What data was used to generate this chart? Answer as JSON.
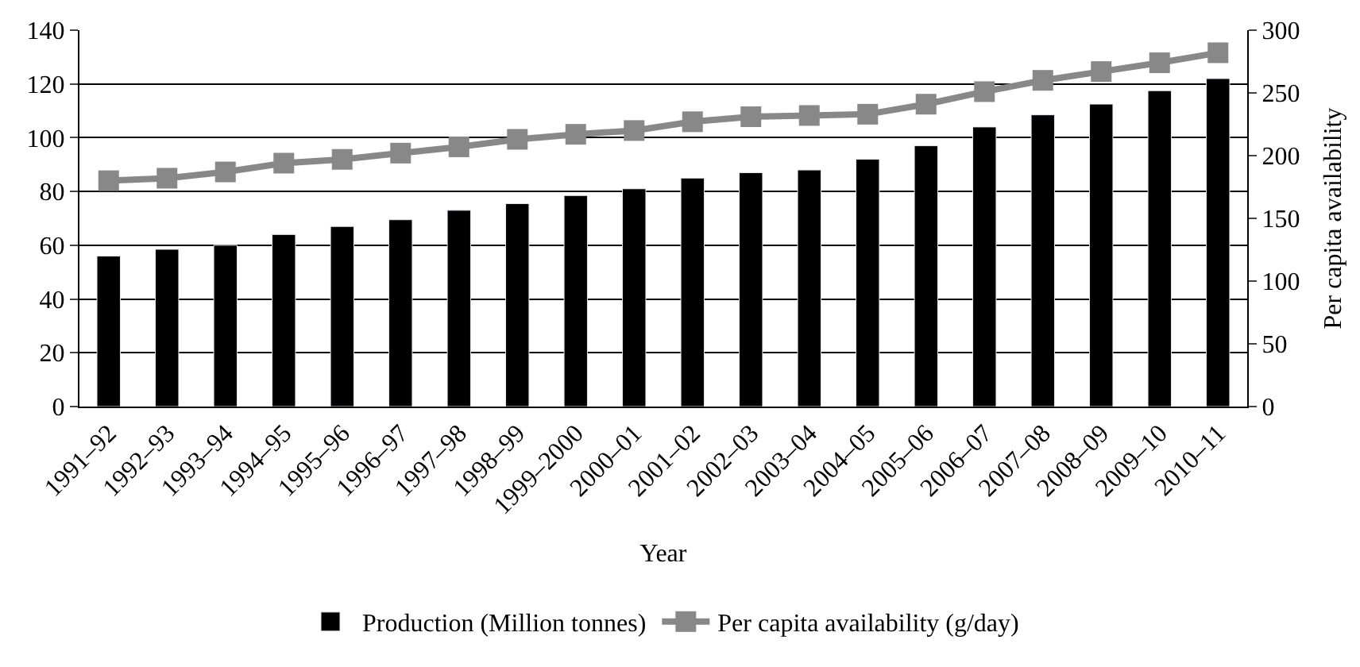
{
  "chart_data": {
    "type": "bar",
    "categories": [
      "1991–92",
      "1992–93",
      "1993–94",
      "1994–95",
      "1995–96",
      "1996–97",
      "1997–98",
      "1998–99",
      "1999–2000",
      "2000–01",
      "2001–02",
      "2002–03",
      "2003–04",
      "2004–05",
      "2005–06",
      "2006–07",
      "2007–08",
      "2008–09",
      "2009–10",
      "2010–11"
    ],
    "series": [
      {
        "name": "Production (Million tonnes)",
        "color": "#000000",
        "values": [
          56,
          58.5,
          60,
          64,
          67,
          69.5,
          73,
          75.5,
          78.5,
          81,
          85,
          87,
          88,
          92,
          97,
          104,
          108.5,
          112.5,
          117.5,
          122
        ]
      },
      {
        "name": "Per capita availability (g/day)",
        "type": "line",
        "axis": "y2",
        "color": "#888888",
        "marker": "square",
        "values": [
          180,
          182,
          187,
          194,
          197,
          202,
          207,
          213,
          217,
          220,
          227,
          231,
          232,
          233,
          241,
          251,
          260,
          267,
          274,
          282
        ]
      }
    ],
    "xlabel": "Year",
    "y2label": "Per capita availability",
    "ylim": [
      0,
      140
    ],
    "yticks": [
      0,
      20,
      40,
      60,
      80,
      100,
      120,
      140
    ],
    "y2lim": [
      0,
      300
    ],
    "y2ticks": [
      0,
      50,
      100,
      150,
      200,
      250,
      300
    ],
    "grid": "y",
    "legend": "bottom"
  }
}
